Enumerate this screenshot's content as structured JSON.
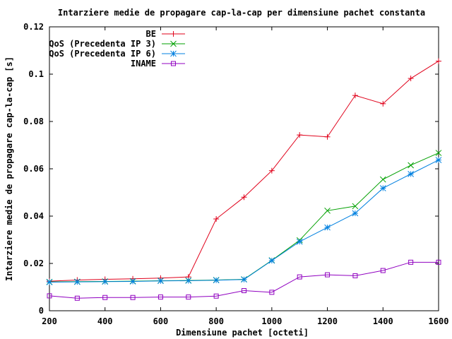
{
  "chart_data": {
    "type": "line",
    "title": "Intarziere medie de propagare cap-la-cap per dimensiune pachet constanta",
    "xlabel": "Dimensiune pachet [octeti]",
    "ylabel": "Intarziere medie de propagare cap-la-cap [s]",
    "xlim": [
      200,
      1600
    ],
    "ylim": [
      0,
      0.12
    ],
    "x_ticks": [
      "200",
      "400",
      "600",
      "800",
      "1000",
      "1200",
      "1400",
      "1600"
    ],
    "y_ticks": [
      "0",
      "0.02",
      "0.04",
      "0.06",
      "0.08",
      "0.1",
      "0.12"
    ],
    "grid": false,
    "legend_position": "top-left",
    "x": [
      200,
      300,
      400,
      500,
      600,
      700,
      800,
      900,
      1000,
      1100,
      1200,
      1300,
      1400,
      1500,
      1600
    ],
    "series": [
      {
        "name": "BE",
        "color": "#e0001a",
        "marker": "plus",
        "values": [
          0.0125,
          0.013,
          0.0133,
          0.0135,
          0.0138,
          0.0143,
          0.0388,
          0.048,
          0.0592,
          0.0743,
          0.0735,
          0.091,
          0.0875,
          0.0982,
          0.1055
        ]
      },
      {
        "name": "QoS (Precedenta IP 3)",
        "color": "#00a000",
        "marker": "cross",
        "values": [
          0.0122,
          0.0123,
          0.0124,
          0.0125,
          0.0127,
          0.0128,
          0.013,
          0.0133,
          0.0213,
          0.0298,
          0.0423,
          0.0442,
          0.0555,
          0.0615,
          0.0667
        ]
      },
      {
        "name": "QoS (Precedenta IP 6)",
        "color": "#0080e0",
        "marker": "star",
        "values": [
          0.0121,
          0.0122,
          0.0123,
          0.0124,
          0.0126,
          0.0127,
          0.0129,
          0.0132,
          0.0212,
          0.0292,
          0.0352,
          0.0412,
          0.0518,
          0.0578,
          0.0637
        ]
      },
      {
        "name": "INAME",
        "color": "#9000c0",
        "marker": "square",
        "values": [
          0.0063,
          0.0053,
          0.0056,
          0.0056,
          0.0058,
          0.0058,
          0.0062,
          0.0085,
          0.0078,
          0.0143,
          0.0152,
          0.0148,
          0.017,
          0.0205,
          0.0205
        ]
      }
    ]
  }
}
